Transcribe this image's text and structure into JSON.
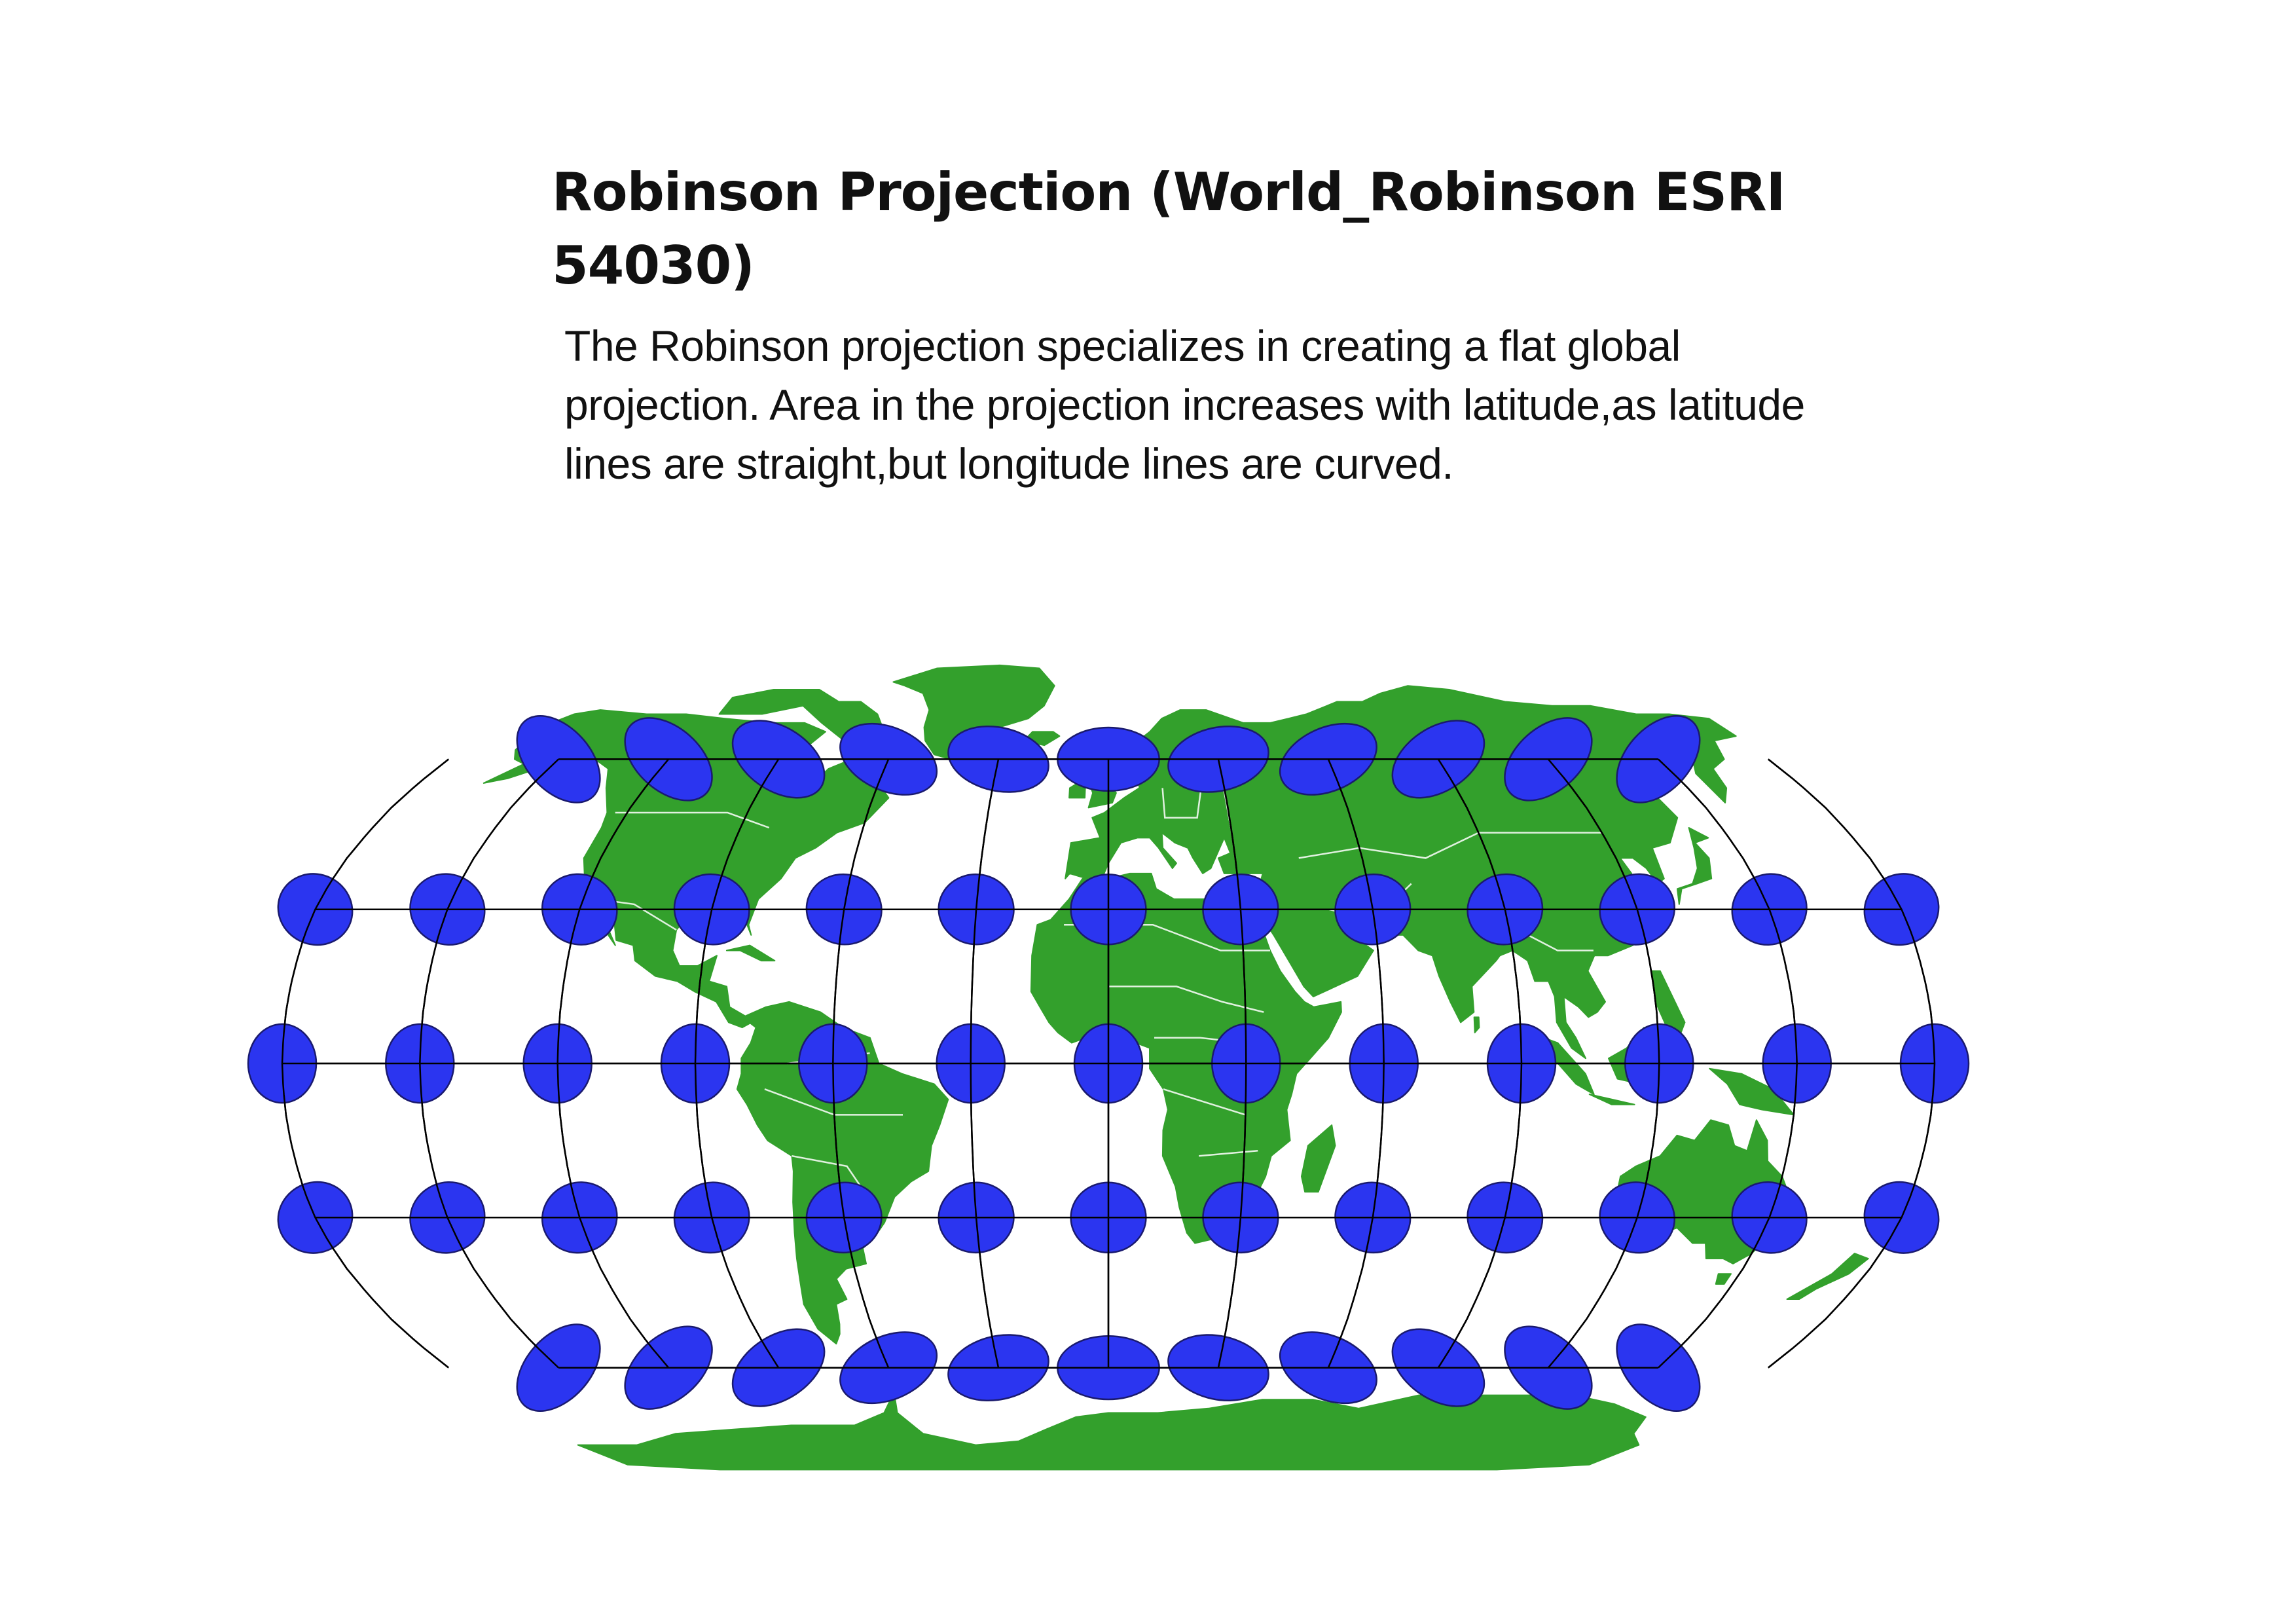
{
  "title": "Robinson Projection (World_Robinson ESRI 54030)",
  "description": "The Robinson projection specializes in creating a flat global projection. Area in the projection increases with latitude,as latitude lines are straight,but longitude lines are curved.",
  "map": {
    "projection": "Robinson",
    "land_color": "#33a02c",
    "border_color": "#ffffff",
    "ocean_color": "#ffffff",
    "graticule_color": "#000000",
    "indicatrix_fill": "#2b35f0",
    "indicatrix_stroke": "#1a1a6e",
    "graticule": {
      "latitudes": [
        60,
        30,
        0,
        -30,
        -60
      ],
      "longitudes": [
        -150,
        -120,
        -90,
        -60,
        -30,
        0,
        30,
        60,
        90,
        120,
        150
      ]
    },
    "indicatrix": {
      "rows": [
        {
          "lat": 60,
          "longitudes": [
            -150,
            -120,
            -90,
            -60,
            -30,
            0,
            30,
            60,
            90,
            120,
            150
          ]
        },
        {
          "lat": 30,
          "longitudes": [
            -180,
            -150,
            -120,
            -90,
            -60,
            -30,
            0,
            30,
            60,
            90,
            120,
            150,
            180
          ]
        },
        {
          "lat": 0,
          "longitudes": [
            -180,
            -150,
            -120,
            -90,
            -60,
            -30,
            0,
            30,
            60,
            90,
            120,
            150,
            180
          ]
        },
        {
          "lat": -30,
          "longitudes": [
            -180,
            -150,
            -120,
            -90,
            -60,
            -30,
            0,
            30,
            60,
            90,
            120,
            150,
            180
          ]
        },
        {
          "lat": -60,
          "longitudes": [
            -150,
            -120,
            -90,
            -60,
            -30,
            0,
            30,
            60,
            90,
            120,
            150
          ]
        }
      ]
    }
  }
}
